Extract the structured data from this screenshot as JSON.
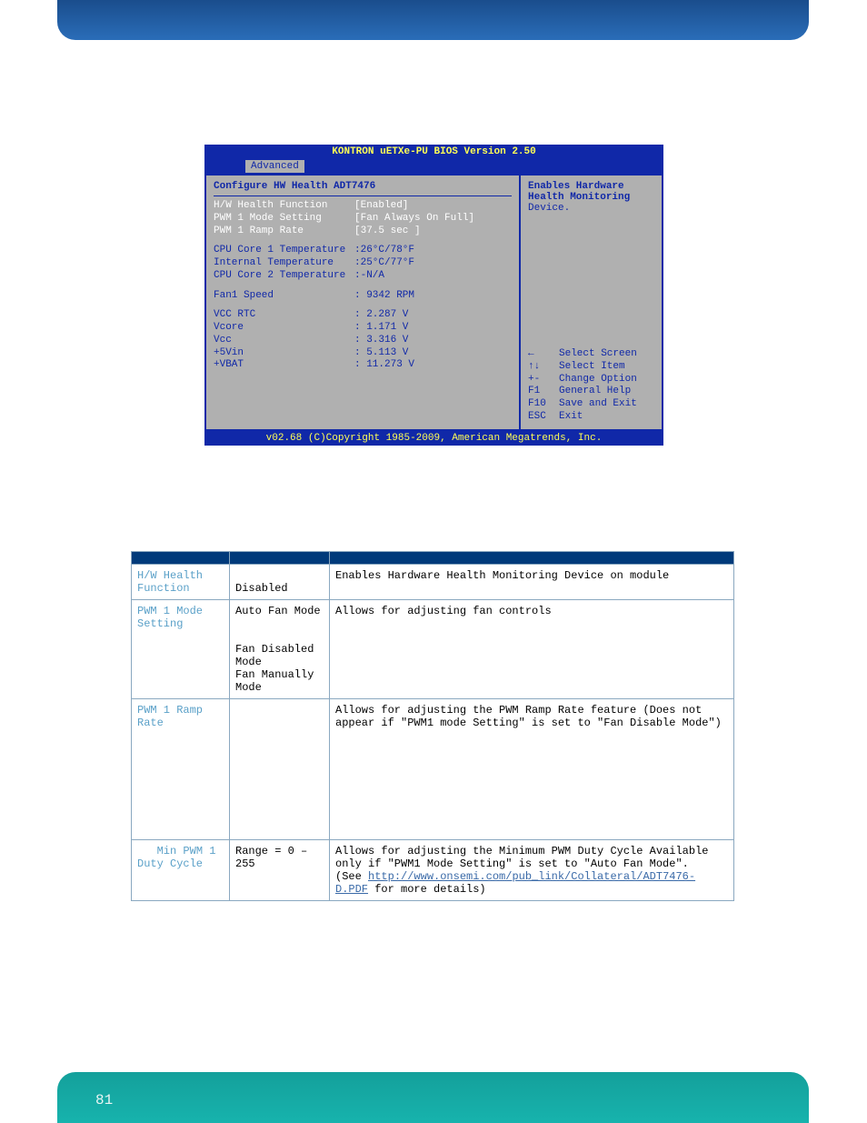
{
  "bios": {
    "title": "KONTRON uETXe-PU BIOS Version 2.50",
    "tab": "Advanced",
    "heading": "Configure HW Health ADT7476",
    "settings": [
      {
        "label": "H/W Health Function",
        "value": "[Enabled]",
        "white": true
      },
      {
        "label": "PWM 1 Mode Setting",
        "value": "[Fan Always On Full]",
        "white": true
      },
      {
        "label": "PWM 1 Ramp Rate",
        "value": "[37.5 sec  ]",
        "white": true
      }
    ],
    "readings1": [
      {
        "label": "CPU Core 1 Temperature",
        "value": ":26°C/78°F"
      },
      {
        "label": "Internal  Temperature",
        "value": ":25°C/77°F"
      },
      {
        "label": "CPU Core 2 Temperature",
        "value": ":-N/A"
      }
    ],
    "fan": {
      "label": "Fan1 Speed",
      "value": ": 9342 RPM"
    },
    "volts": [
      {
        "label": "VCC RTC",
        "value": ": 2.287 V"
      },
      {
        "label": "Vcore",
        "value": ": 1.171 V"
      },
      {
        "label": "Vcc",
        "value": ": 3.316 V"
      },
      {
        "label": "+5Vin",
        "value": ": 5.113 V"
      },
      {
        "label": "+VBAT",
        "value": ": 11.273 V"
      }
    ],
    "help": {
      "l1": "Enables Hardware",
      "l2": "Health Monitoring",
      "l3": "Device."
    },
    "keys": [
      {
        "k": "←",
        "d": "Select Screen"
      },
      {
        "k": "↑↓",
        "d": "Select Item"
      },
      {
        "k": "+-",
        "d": "Change Option"
      },
      {
        "k": "F1",
        "d": "General Help"
      },
      {
        "k": "F10",
        "d": "Save and Exit"
      },
      {
        "k": "ESC",
        "d": "Exit"
      }
    ],
    "footer": "v02.68 (C)Copyright 1985-2009, American Megatrends, Inc."
  },
  "table": {
    "rows": [
      {
        "name": "H/W Health Function",
        "opt": "\nDisabled",
        "desc": "Enables Hardware Health Monitoring Device on module"
      },
      {
        "name": "PWM 1 Mode Setting",
        "opt": "Auto Fan Mode\n\n\nFan Disabled Mode\nFan Manually Mode",
        "desc": "Allows for adjusting fan controls"
      },
      {
        "name": "PWM 1 Ramp Rate",
        "opt": "",
        "desc": "Allows for adjusting the PWM Ramp Rate feature (Does not appear if \"PWM1 mode Setting\" is set to \"Fan Disable Mode\")",
        "tall": true
      },
      {
        "name": "   Min PWM 1 Duty Cycle",
        "opt": "Range = 0 – 255",
        "descPre": "Allows for adjusting the Minimum PWM Duty Cycle Available only if \"PWM1 Mode Setting\" is set to \"Auto Fan Mode\".\n(See ",
        "link": "http://www.onsemi.com/pub_link/Collateral/ADT7476-D.PDF",
        "descPost": "  for more details)"
      }
    ]
  },
  "pageNumber": "81"
}
